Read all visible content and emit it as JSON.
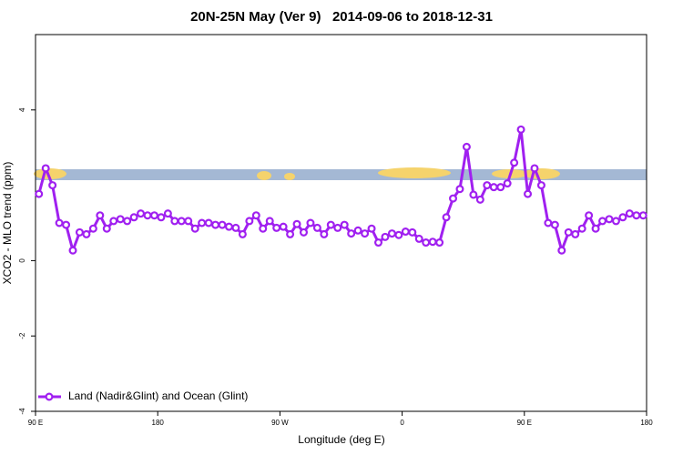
{
  "chart_data": {
    "type": "line",
    "title": "20N-25N May (Ver 9)   2014-09-06 to 2018-12-31",
    "x_label": "Longitude (deg E)",
    "y_label": "XCO2 - MLO trend (ppm)",
    "xlim": [
      90,
      540
    ],
    "xticks": [
      {
        "value": 90,
        "label": "90 E"
      },
      180,
      {
        "value": 270,
        "label": "90 W"
      },
      {
        "value": 360,
        "label": "0"
      },
      {
        "value": 450,
        "label": "90 E"
      },
      {
        "value": 540,
        "label": "180"
      }
    ],
    "ylim": [
      -4,
      6
    ],
    "yticks": [
      -4,
      -2,
      0,
      4
    ],
    "legend": "bottom-left",
    "x": [
      92.5,
      97.5,
      102.5,
      107.5,
      112.5,
      117.5,
      122.5,
      127.5,
      132.5,
      137.5,
      142.5,
      147.5,
      152.5,
      157.5,
      162.5,
      167.5,
      172.5,
      177.5,
      182.5,
      187.5,
      192.5,
      197.5,
      202.5,
      207.5,
      212.5,
      217.5,
      222.5,
      227.5,
      232.5,
      237.5,
      242.5,
      247.5,
      252.5,
      257.5,
      262.5,
      267.5,
      272.5,
      277.5,
      282.5,
      287.5,
      292.5,
      297.5,
      302.5,
      307.5,
      312.5,
      317.5,
      322.5,
      327.5,
      332.5,
      337.5,
      342.5,
      347.5,
      352.5,
      357.5,
      362.5,
      367.5,
      372.5,
      377.5,
      382.5,
      387.5,
      392.5,
      397.5,
      402.5,
      407.5,
      412.5,
      417.5,
      422.5,
      427.5,
      432.5,
      437.5,
      442.5,
      447.5,
      452.5,
      457.5,
      462.5,
      467.5,
      472.5,
      477.5,
      482.5,
      487.5,
      492.5,
      497.5,
      502.5,
      507.5,
      512.5,
      517.5,
      522.5,
      527.5,
      532.5,
      537.5
    ],
    "series": [
      {
        "name": "Land (Nadir&Glint) and Ocean (Glint)",
        "color": "#a020f0",
        "values": [
          1.77,
          2.45,
          2.0,
          1.0,
          0.95,
          0.27,
          0.75,
          0.7,
          0.85,
          1.2,
          0.85,
          1.05,
          1.1,
          1.05,
          1.15,
          1.25,
          1.2,
          1.2,
          1.15,
          1.25,
          1.05,
          1.05,
          1.05,
          0.85,
          1.0,
          1.0,
          0.95,
          0.95,
          0.9,
          0.87,
          0.7,
          1.05,
          1.2,
          0.85,
          1.05,
          0.87,
          0.9,
          0.7,
          0.97,
          0.75,
          1.0,
          0.87,
          0.7,
          0.95,
          0.87,
          0.95,
          0.72,
          0.8,
          0.72,
          0.85,
          0.48,
          0.63,
          0.72,
          0.68,
          0.77,
          0.75,
          0.58,
          0.48,
          0.5,
          0.48,
          1.15,
          1.65,
          1.9,
          3.02,
          1.75,
          1.62,
          2.0,
          1.95,
          1.95,
          2.05,
          2.6,
          3.48,
          1.77,
          2.45,
          2.0,
          1.0,
          0.95,
          0.27,
          0.75,
          0.7,
          0.85,
          1.2,
          0.85,
          1.05,
          1.1,
          1.05,
          1.15,
          1.25,
          1.2,
          1.2
        ]
      }
    ]
  }
}
